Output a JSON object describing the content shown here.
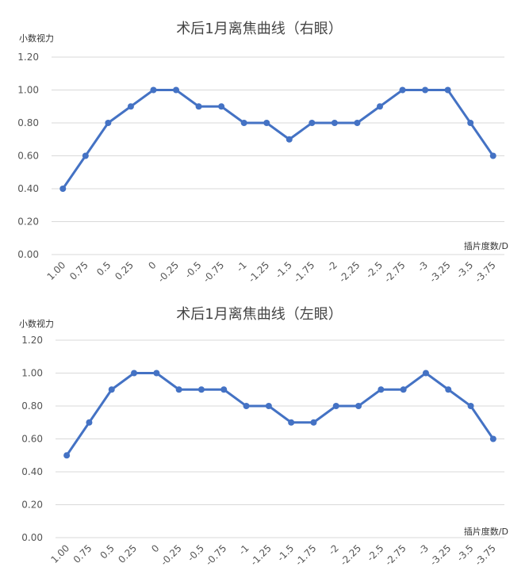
{
  "chart_data": [
    {
      "type": "line",
      "title": "术后1月离焦曲线（右眼）",
      "ylabel": "小数视力",
      "xlabel": "插片度数/D",
      "ylim": [
        0,
        1.2
      ],
      "yticks": [
        "0.00",
        "0.20",
        "0.40",
        "0.60",
        "0.80",
        "1.00",
        "1.20"
      ],
      "categories": [
        "1.00",
        "0.75",
        "0.5",
        "0.25",
        "0",
        "-0.25",
        "-0.5",
        "-0.75",
        "-1",
        "-1.25",
        "-1.5",
        "-1.75",
        "-2",
        "-2.25",
        "-2.5",
        "-2.75",
        "-3",
        "-3.25",
        "-3.5",
        "-3.75"
      ],
      "values": [
        0.4,
        0.6,
        0.8,
        0.9,
        1.0,
        1.0,
        0.9,
        0.9,
        0.8,
        0.8,
        0.7,
        0.8,
        0.8,
        0.8,
        0.9,
        1.0,
        1.0,
        1.0,
        0.8,
        0.6
      ],
      "grid": true,
      "color": "#4472c4"
    },
    {
      "type": "line",
      "title": "术后1月离焦曲线（左眼）",
      "ylabel": "小数视力",
      "xlabel": "插片度数/D",
      "ylim": [
        0,
        1.2
      ],
      "yticks": [
        "0.00",
        "0.20",
        "0.40",
        "0.60",
        "0.80",
        "1.00",
        "1.20"
      ],
      "categories": [
        "1.00",
        "0.75",
        "0.5",
        "0.25",
        "0",
        "-0.25",
        "-0.5",
        "-0.75",
        "-1",
        "-1.25",
        "-1.5",
        "-1.75",
        "-2",
        "-2.25",
        "-2.5",
        "-2.75",
        "-3",
        "-3.25",
        "-3.5",
        "-3.75"
      ],
      "values": [
        0.5,
        0.7,
        0.9,
        1.0,
        1.0,
        0.9,
        0.9,
        0.9,
        0.8,
        0.8,
        0.7,
        0.7,
        0.8,
        0.8,
        0.9,
        0.9,
        1.0,
        0.9,
        0.8,
        0.6
      ],
      "grid": true,
      "color": "#4472c4"
    }
  ]
}
